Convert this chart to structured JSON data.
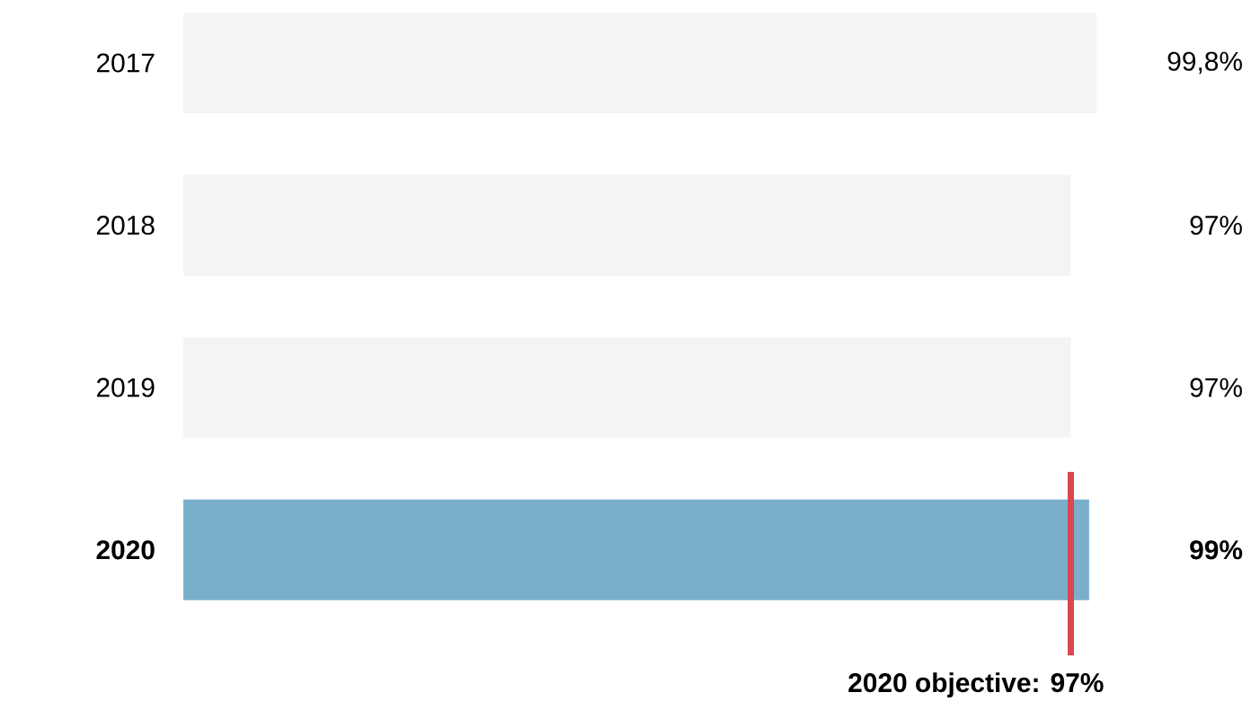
{
  "chart_data": {
    "type": "bar",
    "orientation": "horizontal",
    "categories": [
      "2017",
      "2018",
      "2019",
      "**2020**"
    ],
    "values": [
      99.8,
      97,
      97,
      99
    ],
    "colors": [
      "#f3f4f6",
      "#f3f4f6",
      "#f3f4f6",
      "#7aafcc"
    ],
    "value_labels": [
      "99,8%",
      "97%",
      "97%",
      "**99%**"
    ],
    "xlim": [
      0,
      100
    ],
    "tick_labels": "y",
    "ref_lines": [
      {
        "axis": "x",
        "value": 97,
        "label": "**2020 objective: 97%**",
        "color": "#d9474f"
      }
    ]
  }
}
